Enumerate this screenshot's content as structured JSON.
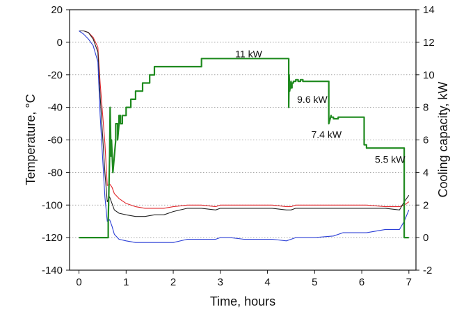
{
  "chart_data": {
    "type": "line",
    "xlabel": "Time, hours",
    "ylabel_left": "Temperature, °C",
    "ylabel_right": "Cooling capacity, kW",
    "xlim": [
      -0.2,
      7.15
    ],
    "ylim_left": [
      -140,
      20
    ],
    "ylim_right": [
      -2,
      14
    ],
    "x_ticks": [
      0,
      1,
      2,
      3,
      4,
      5,
      6,
      7
    ],
    "y_ticks_left": [
      20,
      0,
      -20,
      -40,
      -60,
      -80,
      -100,
      -120,
      -140
    ],
    "y_ticks_right": [
      14,
      12,
      10,
      8,
      6,
      4,
      2,
      0,
      -2
    ],
    "gridlines_dotted_left": [
      0,
      -20,
      -40,
      -60,
      -80,
      -100,
      -120
    ],
    "legend": "none",
    "colors": {
      "red": "#e0262b",
      "black": "#222222",
      "blue": "#2b3fd6",
      "green": "#1f8a1f",
      "grid": "#888888"
    },
    "annotations": [
      {
        "text": "11 kW",
        "x": 3.6,
        "y_right": 11.3
      },
      {
        "text": "9.6 kW",
        "x": 4.95,
        "y_right": 8.5
      },
      {
        "text": "7.4 kW",
        "x": 5.25,
        "y_right": 6.35
      },
      {
        "text": "5.5 kW",
        "x": 6.6,
        "y_right": 4.8
      }
    ],
    "series": [
      {
        "axis": "left",
        "color": "red",
        "x": [
          0,
          0.1,
          0.2,
          0.3,
          0.4,
          0.45,
          0.55,
          0.6,
          0.65,
          0.7,
          0.75,
          0.85,
          1.0,
          1.2,
          1.4,
          1.6,
          1.8,
          2.0,
          2.3,
          2.6,
          2.9,
          3.0,
          3.2,
          3.5,
          3.8,
          4.1,
          4.4,
          4.5,
          4.6,
          5.0,
          5.4,
          5.8,
          6.1,
          6.5,
          6.8,
          6.9,
          7.0
        ],
        "y": [
          7,
          7,
          6,
          3,
          -3,
          -25,
          -62,
          -88,
          -87,
          -89,
          -93,
          -96,
          -99,
          -101,
          -102,
          -102,
          -102,
          -101,
          -100,
          -100,
          -101,
          -100,
          -100,
          -100,
          -100,
          -100,
          -101,
          -101,
          -100,
          -100,
          -100,
          -100,
          -100,
          -101,
          -101,
          -100,
          -98
        ]
      },
      {
        "axis": "left",
        "color": "black",
        "x": [
          0,
          0.1,
          0.2,
          0.3,
          0.4,
          0.45,
          0.55,
          0.6,
          0.65,
          0.7,
          0.75,
          0.85,
          1.0,
          1.2,
          1.4,
          1.6,
          1.8,
          2.0,
          2.3,
          2.6,
          2.9,
          3.0,
          3.2,
          3.5,
          3.8,
          4.1,
          4.4,
          4.5,
          4.6,
          5.0,
          5.4,
          5.8,
          6.1,
          6.5,
          6.8,
          6.9,
          7.0
        ],
        "y": [
          7,
          7,
          6,
          2,
          -6,
          -33,
          -80,
          -98,
          -95,
          -99,
          -103,
          -105,
          -106,
          -107,
          -107,
          -106,
          -106,
          -104,
          -102,
          -102,
          -103,
          -102,
          -102,
          -102,
          -102,
          -102,
          -103,
          -103,
          -102,
          -102,
          -102,
          -102,
          -102,
          -102,
          -103,
          -98,
          -94
        ]
      },
      {
        "axis": "left",
        "color": "blue",
        "x": [
          0,
          0.1,
          0.2,
          0.3,
          0.4,
          0.45,
          0.55,
          0.6,
          0.65,
          0.7,
          0.75,
          0.85,
          1.0,
          1.2,
          1.4,
          1.6,
          1.8,
          2.0,
          2.3,
          2.6,
          2.9,
          3.0,
          3.2,
          3.5,
          3.8,
          4.1,
          4.4,
          4.5,
          4.6,
          5.0,
          5.4,
          5.6,
          5.8,
          6.1,
          6.5,
          6.8,
          6.9,
          7.0
        ],
        "y": [
          7,
          5,
          2,
          -2,
          -12,
          -45,
          -95,
          -110,
          -109,
          -113,
          -118,
          -121,
          -122,
          -123,
          -123,
          -123,
          -123,
          -123,
          -121,
          -121,
          -121,
          -120,
          -120,
          -121,
          -121,
          -121,
          -122,
          -121,
          -120,
          -120,
          -119,
          -117,
          -117,
          -117,
          -115,
          -115,
          -110,
          -103
        ]
      },
      {
        "axis": "right",
        "color": "green",
        "x": [
          0,
          0.62,
          0.62,
          0.65,
          0.66,
          0.68,
          0.69,
          0.72,
          0.72,
          0.78,
          0.78,
          0.82,
          0.82,
          0.85,
          0.85,
          0.88,
          0.88,
          0.92,
          0.92,
          1.0,
          1.0,
          1.1,
          1.1,
          1.2,
          1.2,
          1.35,
          1.35,
          1.5,
          1.5,
          1.6,
          1.6,
          1.75,
          1.75,
          2.0,
          2.0,
          2.2,
          2.2,
          2.4,
          2.4,
          2.6,
          2.6,
          2.9,
          2.9,
          3.0,
          3.0,
          4.45,
          4.45,
          4.46,
          4.47,
          4.5,
          4.5,
          4.52,
          4.52,
          4.55,
          4.55,
          4.6,
          4.6,
          4.65,
          4.65,
          4.7,
          4.7,
          4.75,
          4.75,
          4.8,
          4.8,
          5.3,
          5.3,
          5.35,
          5.35,
          5.4,
          5.4,
          5.5,
          5.5,
          6.05,
          6.05,
          6.1,
          6.1,
          6.2,
          6.2,
          6.9,
          6.9,
          7.0
        ],
        "y": [
          0,
          0,
          1,
          5,
          8,
          5,
          6,
          4,
          4,
          6,
          7,
          7,
          6,
          7,
          7.5,
          7.5,
          7,
          7,
          7.5,
          7.5,
          8,
          8,
          8.5,
          8.5,
          9,
          9,
          9.5,
          9.5,
          10,
          10,
          10.5,
          10.5,
          10.5,
          10.5,
          10.5,
          10.5,
          10.5,
          10.5,
          10.5,
          10.5,
          11,
          11,
          11,
          11,
          11,
          11,
          8,
          10,
          9,
          9.6,
          9.2,
          9.2,
          9.5,
          9.5,
          9.6,
          9.6,
          9.7,
          9.7,
          9.6,
          9.6,
          9.7,
          9.7,
          9.6,
          9.6,
          9.6,
          9.6,
          7,
          7.5,
          7.4,
          7.4,
          7.3,
          7.3,
          7.4,
          7.4,
          5.7,
          5.7,
          5.5,
          5.5,
          5.5,
          5.5,
          0,
          0
        ]
      }
    ]
  }
}
